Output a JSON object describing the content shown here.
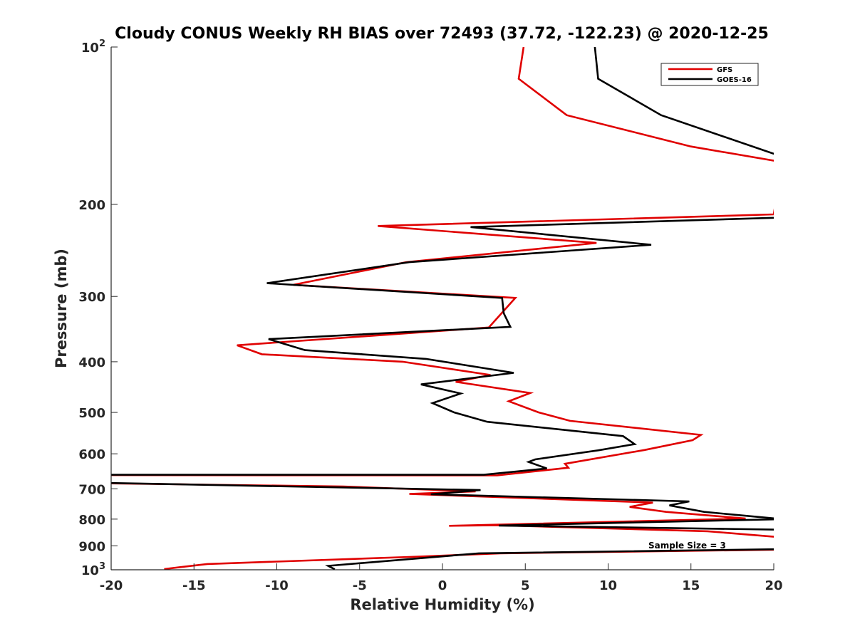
{
  "chart_data": {
    "type": "line",
    "title": "Cloudy CONUS Weekly RH BIAS over 72493 (37.72, -122.23) @ 2020-12-25",
    "xlabel": "Relative Humidity (%)",
    "ylabel": "Pressure (mb)",
    "xlim": [
      -20,
      20
    ],
    "ylim": [
      100,
      1000
    ],
    "y_scale": "log",
    "y_reversed": true,
    "grid": false,
    "legend_position": "top-right",
    "x_ticks": [
      "-20",
      "-15",
      "-10",
      "-5",
      "0",
      "5",
      "10",
      "15",
      "20"
    ],
    "y_ticks": [
      {
        "value": 100,
        "base": "10",
        "exp": "2"
      },
      {
        "value": 200,
        "label": "200"
      },
      {
        "value": 300,
        "label": "300"
      },
      {
        "value": 400,
        "label": "400"
      },
      {
        "value": 500,
        "label": "500"
      },
      {
        "value": 600,
        "label": "600"
      },
      {
        "value": 700,
        "label": "700"
      },
      {
        "value": 800,
        "label": "800"
      },
      {
        "value": 900,
        "label": "900"
      },
      {
        "value": 1000,
        "base": "10",
        "exp": "3"
      }
    ],
    "annotation": "Sample Size = 3",
    "series": [
      {
        "name": "GFS",
        "color": "#e00000",
        "points": [
          [
            4.9,
            100
          ],
          [
            4.6,
            115
          ],
          [
            7.5,
            135
          ],
          [
            15.0,
            155
          ],
          [
            20.5,
            166
          ],
          [
            20.0,
            209
          ],
          [
            -3.9,
            220
          ],
          [
            9.3,
            237
          ],
          [
            -2.2,
            258
          ],
          [
            -9.0,
            285
          ],
          [
            4.4,
            302
          ],
          [
            2.8,
            344
          ],
          [
            -12.4,
            372
          ],
          [
            -10.9,
            387
          ],
          [
            -2.4,
            400
          ],
          [
            2.9,
            424
          ],
          [
            0.8,
            437
          ],
          [
            5.3,
            459
          ],
          [
            4.0,
            476
          ],
          [
            5.8,
            500
          ],
          [
            7.7,
            519
          ],
          [
            15.6,
            552
          ],
          [
            15.1,
            565
          ],
          [
            12.2,
            590
          ],
          [
            7.4,
            627
          ],
          [
            7.6,
            638
          ],
          [
            3.3,
            660
          ],
          [
            -20.5,
            659
          ],
          [
            -20.5,
            683
          ],
          [
            -6.0,
            693
          ],
          [
            2.0,
            708
          ],
          [
            -2.0,
            716
          ],
          [
            12.7,
            744
          ],
          [
            11.3,
            758
          ],
          [
            13.5,
            775
          ],
          [
            18.3,
            798
          ],
          [
            0.4,
            824
          ],
          [
            3.4,
            822
          ],
          [
            16.0,
            844
          ],
          [
            20.5,
            867
          ],
          [
            20.5,
            915
          ],
          [
            3.5,
            930
          ],
          [
            -2.0,
            945
          ],
          [
            -14.2,
            975
          ],
          [
            -16.8,
            997
          ]
        ]
      },
      {
        "name": "GOES-16",
        "color": "#000000",
        "points": [
          [
            9.2,
            100
          ],
          [
            9.4,
            115
          ],
          [
            13.2,
            135
          ],
          [
            20.5,
            162
          ],
          [
            20.5,
            212
          ],
          [
            1.7,
            221
          ],
          [
            12.6,
            239
          ],
          [
            -2.0,
            258
          ],
          [
            -10.6,
            283
          ],
          [
            3.6,
            302
          ],
          [
            3.7,
            323
          ],
          [
            4.1,
            343
          ],
          [
            -10.5,
            362
          ],
          [
            -8.3,
            380
          ],
          [
            -1.0,
            395
          ],
          [
            4.3,
            420
          ],
          [
            -1.3,
            442
          ],
          [
            1.1,
            460
          ],
          [
            -0.6,
            480
          ],
          [
            0.7,
            500
          ],
          [
            2.7,
            521
          ],
          [
            10.9,
            555
          ],
          [
            11.6,
            575
          ],
          [
            9.4,
            591
          ],
          [
            5.6,
            615
          ],
          [
            5.2,
            622
          ],
          [
            6.3,
            640
          ],
          [
            2.5,
            658
          ],
          [
            -20.5,
            658
          ],
          [
            -20.5,
            682
          ],
          [
            2.3,
            704
          ],
          [
            -0.7,
            717
          ],
          [
            14.9,
            740
          ],
          [
            13.7,
            753
          ],
          [
            15.8,
            775
          ],
          [
            20.5,
            800
          ],
          [
            3.4,
            823
          ],
          [
            20.5,
            838
          ],
          [
            20.5,
            913
          ],
          [
            2.2,
            930
          ],
          [
            -6.9,
            983
          ],
          [
            -6.5,
            998
          ]
        ]
      }
    ]
  }
}
